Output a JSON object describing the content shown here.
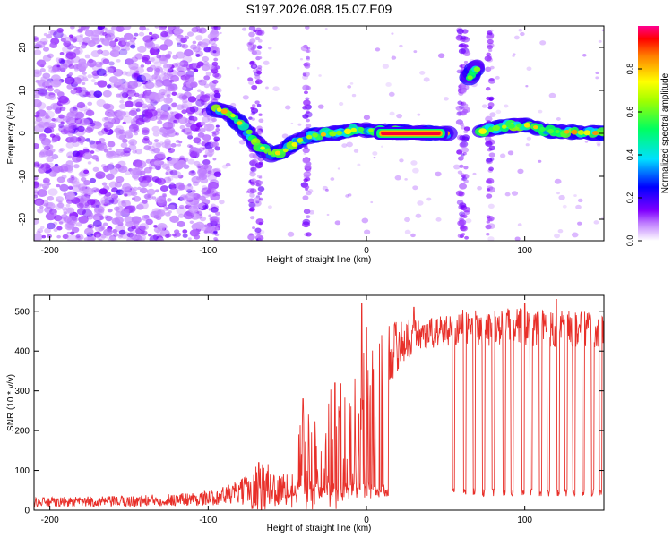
{
  "chart_data": [
    {
      "type": "heatmap",
      "title": "S197.2026.088.15.07.E09",
      "xlabel": "Height of straight line (km)",
      "ylabel": "Frequency (Hz)",
      "xlim": [
        -210,
        150
      ],
      "ylim": [
        -25,
        25
      ],
      "xticks": [
        -200,
        -100,
        0,
        100
      ],
      "yticks": [
        -20,
        -10,
        0,
        10,
        20
      ],
      "colorbar": {
        "label": "Normalized spectral amplitude",
        "range": [
          0,
          1
        ],
        "ticks": [
          "0.0",
          "0.2",
          "0.4",
          "0.6",
          "0.8"
        ],
        "tick_values": [
          0.0,
          0.2,
          0.4,
          0.6,
          0.8
        ],
        "colors": [
          "#ffffff",
          "#9000e0",
          "#0000ff",
          "#00e0ff",
          "#00ff00",
          "#ffff00",
          "#ff8000",
          "#ff0000",
          "#ff0090"
        ]
      },
      "noise_region_x": [
        -210,
        -95
      ],
      "ridge": [
        {
          "x": -95,
          "f": 5.5
        },
        {
          "x": -88,
          "f": 5
        },
        {
          "x": -82,
          "f": 3
        },
        {
          "x": -75,
          "f": 0
        },
        {
          "x": -68,
          "f": -3
        },
        {
          "x": -60,
          "f": -5
        },
        {
          "x": -52,
          "f": -4
        },
        {
          "x": -45,
          "f": -2
        },
        {
          "x": -35,
          "f": -0.5
        },
        {
          "x": -20,
          "f": 0
        },
        {
          "x": -5,
          "f": 1
        },
        {
          "x": 5,
          "f": 0.5
        },
        {
          "x": 48,
          "f": 0
        },
        {
          "x": 52,
          "f": 0
        }
      ],
      "ridge_segment_2": [
        {
          "x": 65,
          "f": 13
        },
        {
          "x": 70,
          "f": 16
        }
      ],
      "ridge_segment_3": [
        {
          "x": 72,
          "f": 0.5
        },
        {
          "x": 85,
          "f": 1.5
        },
        {
          "x": 100,
          "f": 2
        },
        {
          "x": 115,
          "f": 0.5
        },
        {
          "x": 150,
          "f": 0
        }
      ],
      "hot_band": {
        "x0": 8,
        "x1": 48,
        "f": 0
      },
      "vertical_streaks_x": [
        -95,
        -72,
        -68,
        -38,
        60,
        62,
        78
      ]
    },
    {
      "type": "line",
      "title": "",
      "xlabel": "Height of straight line (km)",
      "ylabel": "SNR (10 * v/v)",
      "xlim": [
        -210,
        150
      ],
      "ylim": [
        0,
        540
      ],
      "xticks": [
        -200,
        -100,
        0,
        100
      ],
      "yticks": [
        0,
        100,
        200,
        300,
        400,
        500
      ],
      "color": "#e8302a",
      "profile": [
        {
          "x": -210,
          "base": 20,
          "amp": 12
        },
        {
          "x": -150,
          "base": 22,
          "amp": 14
        },
        {
          "x": -100,
          "base": 30,
          "amp": 18
        },
        {
          "x": -80,
          "base": 45,
          "amp": 30
        },
        {
          "x": -65,
          "base": 60,
          "amp": 70
        },
        {
          "x": -50,
          "base": 50,
          "amp": 40
        },
        {
          "x": -40,
          "base": 120,
          "amp": 140
        },
        {
          "x": -20,
          "base": 160,
          "amp": 160
        },
        {
          "x": -5,
          "base": 220,
          "amp": 180
        },
        {
          "x": 5,
          "base": 300,
          "amp": 150
        },
        {
          "x": 15,
          "base": 400,
          "amp": 80
        },
        {
          "x": 30,
          "base": 440,
          "amp": 40
        },
        {
          "x": 50,
          "base": 450,
          "amp": 40
        },
        {
          "x": 60,
          "base": 460,
          "amp": 45
        },
        {
          "x": 100,
          "base": 460,
          "amp": 50
        },
        {
          "x": 150,
          "base": 450,
          "amp": 45
        }
      ],
      "peaks": [
        {
          "x": -68,
          "y": 120
        },
        {
          "x": -40,
          "y": 280
        },
        {
          "x": -20,
          "y": 320
        },
        {
          "x": -3,
          "y": 520
        },
        {
          "x": 0,
          "y": 460
        },
        {
          "x": 30,
          "y": 510
        },
        {
          "x": 80,
          "y": 510
        },
        {
          "x": 100,
          "y": 520
        },
        {
          "x": 120,
          "y": 530
        }
      ],
      "dropouts_x": [
        7,
        13,
        55,
        62,
        68,
        74,
        80,
        87,
        92,
        99,
        104,
        110,
        115,
        121,
        126,
        131,
        137,
        143,
        148
      ],
      "dropout_level": 45
    }
  ]
}
